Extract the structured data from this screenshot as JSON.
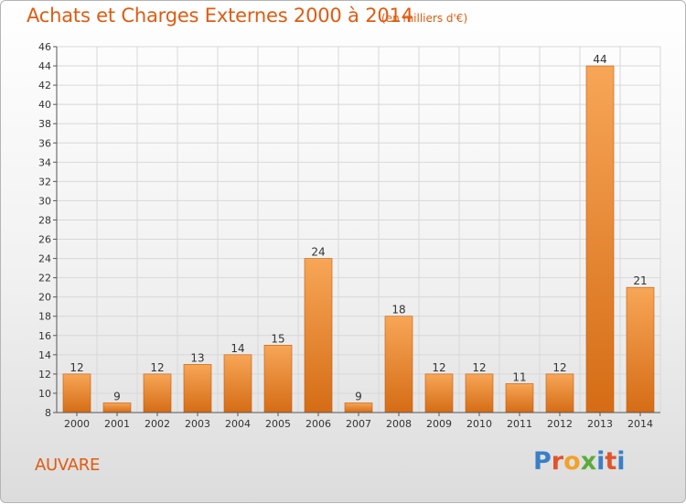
{
  "header": {
    "title": "Achats et Charges Externes 2000 à 2014",
    "unit": "(en milliers d'€)"
  },
  "footer": {
    "commune": "AUVARE",
    "logo_text": "Proxiti",
    "logo_colors": [
      "#3a7fc6",
      "#e2542b",
      "#f2a12a",
      "#5bab3b",
      "#3a7fc6",
      "#e2542b",
      "#3a7fc6"
    ]
  },
  "colors": {
    "accent": "#e05b10",
    "bar_light": "#f7a657",
    "bar_dark": "#d56c15",
    "bar_edge": "#c25a0a",
    "axis": "#555555",
    "grid": "#d8d8d8"
  },
  "chart_data": {
    "type": "bar",
    "title": "Achats et Charges Externes 2000 à 2014",
    "subtitle": "(en milliers d'€)",
    "xlabel": "",
    "ylabel": "",
    "categories": [
      "2000",
      "2001",
      "2002",
      "2003",
      "2004",
      "2005",
      "2006",
      "2007",
      "2008",
      "2009",
      "2010",
      "2011",
      "2012",
      "2013",
      "2014"
    ],
    "values": [
      12,
      9,
      12,
      13,
      14,
      15,
      24,
      9,
      18,
      12,
      12,
      11,
      12,
      44,
      21
    ],
    "ylim": [
      8,
      46
    ],
    "yticks": [
      8,
      10,
      12,
      14,
      16,
      18,
      20,
      22,
      24,
      26,
      28,
      30,
      32,
      34,
      36,
      38,
      40,
      42,
      44,
      46
    ],
    "grid": true,
    "legend": "none"
  }
}
